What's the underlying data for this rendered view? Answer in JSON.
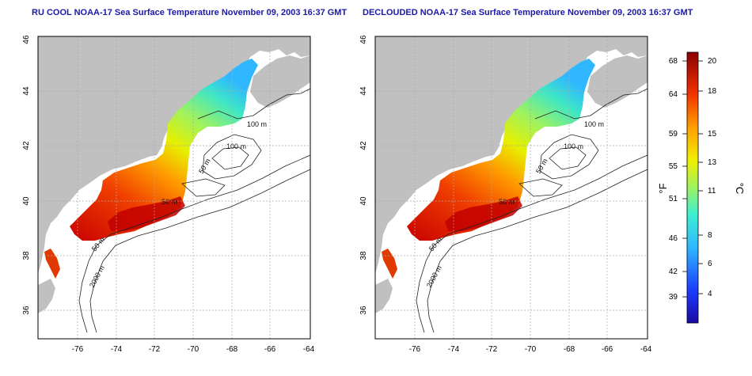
{
  "titles": {
    "left": "RU COOL NOAA-17 Sea Surface Temperature November 09, 2003 16:37 GMT",
    "right": "DECLOUDED NOAA-17 Sea Surface Temperature November 09, 2003 16:37 GMT"
  },
  "axes": {
    "lat_ticks": [
      "46",
      "44",
      "42",
      "40",
      "38",
      "36"
    ],
    "lon_ticks": [
      "-76",
      "-74",
      "-72",
      "-70",
      "-68",
      "-66",
      "-64"
    ]
  },
  "contour_labels": [
    "100 m",
    "100 m",
    "50 m",
    "50 m",
    "50 m",
    "2000 m"
  ],
  "colorbar": {
    "f_ticks": [
      "68",
      "64",
      "59",
      "55",
      "51",
      "46",
      "42",
      "39"
    ],
    "c_ticks": [
      "20",
      "18",
      "15",
      "13",
      "11",
      "8",
      "6",
      "4"
    ],
    "f_unit": "°F",
    "c_unit": "°C"
  },
  "colors": {
    "land": "#c0c0c0",
    "title": "#1a1aa8",
    "warm": "#c80000",
    "cool": "#2fb8ff"
  }
}
